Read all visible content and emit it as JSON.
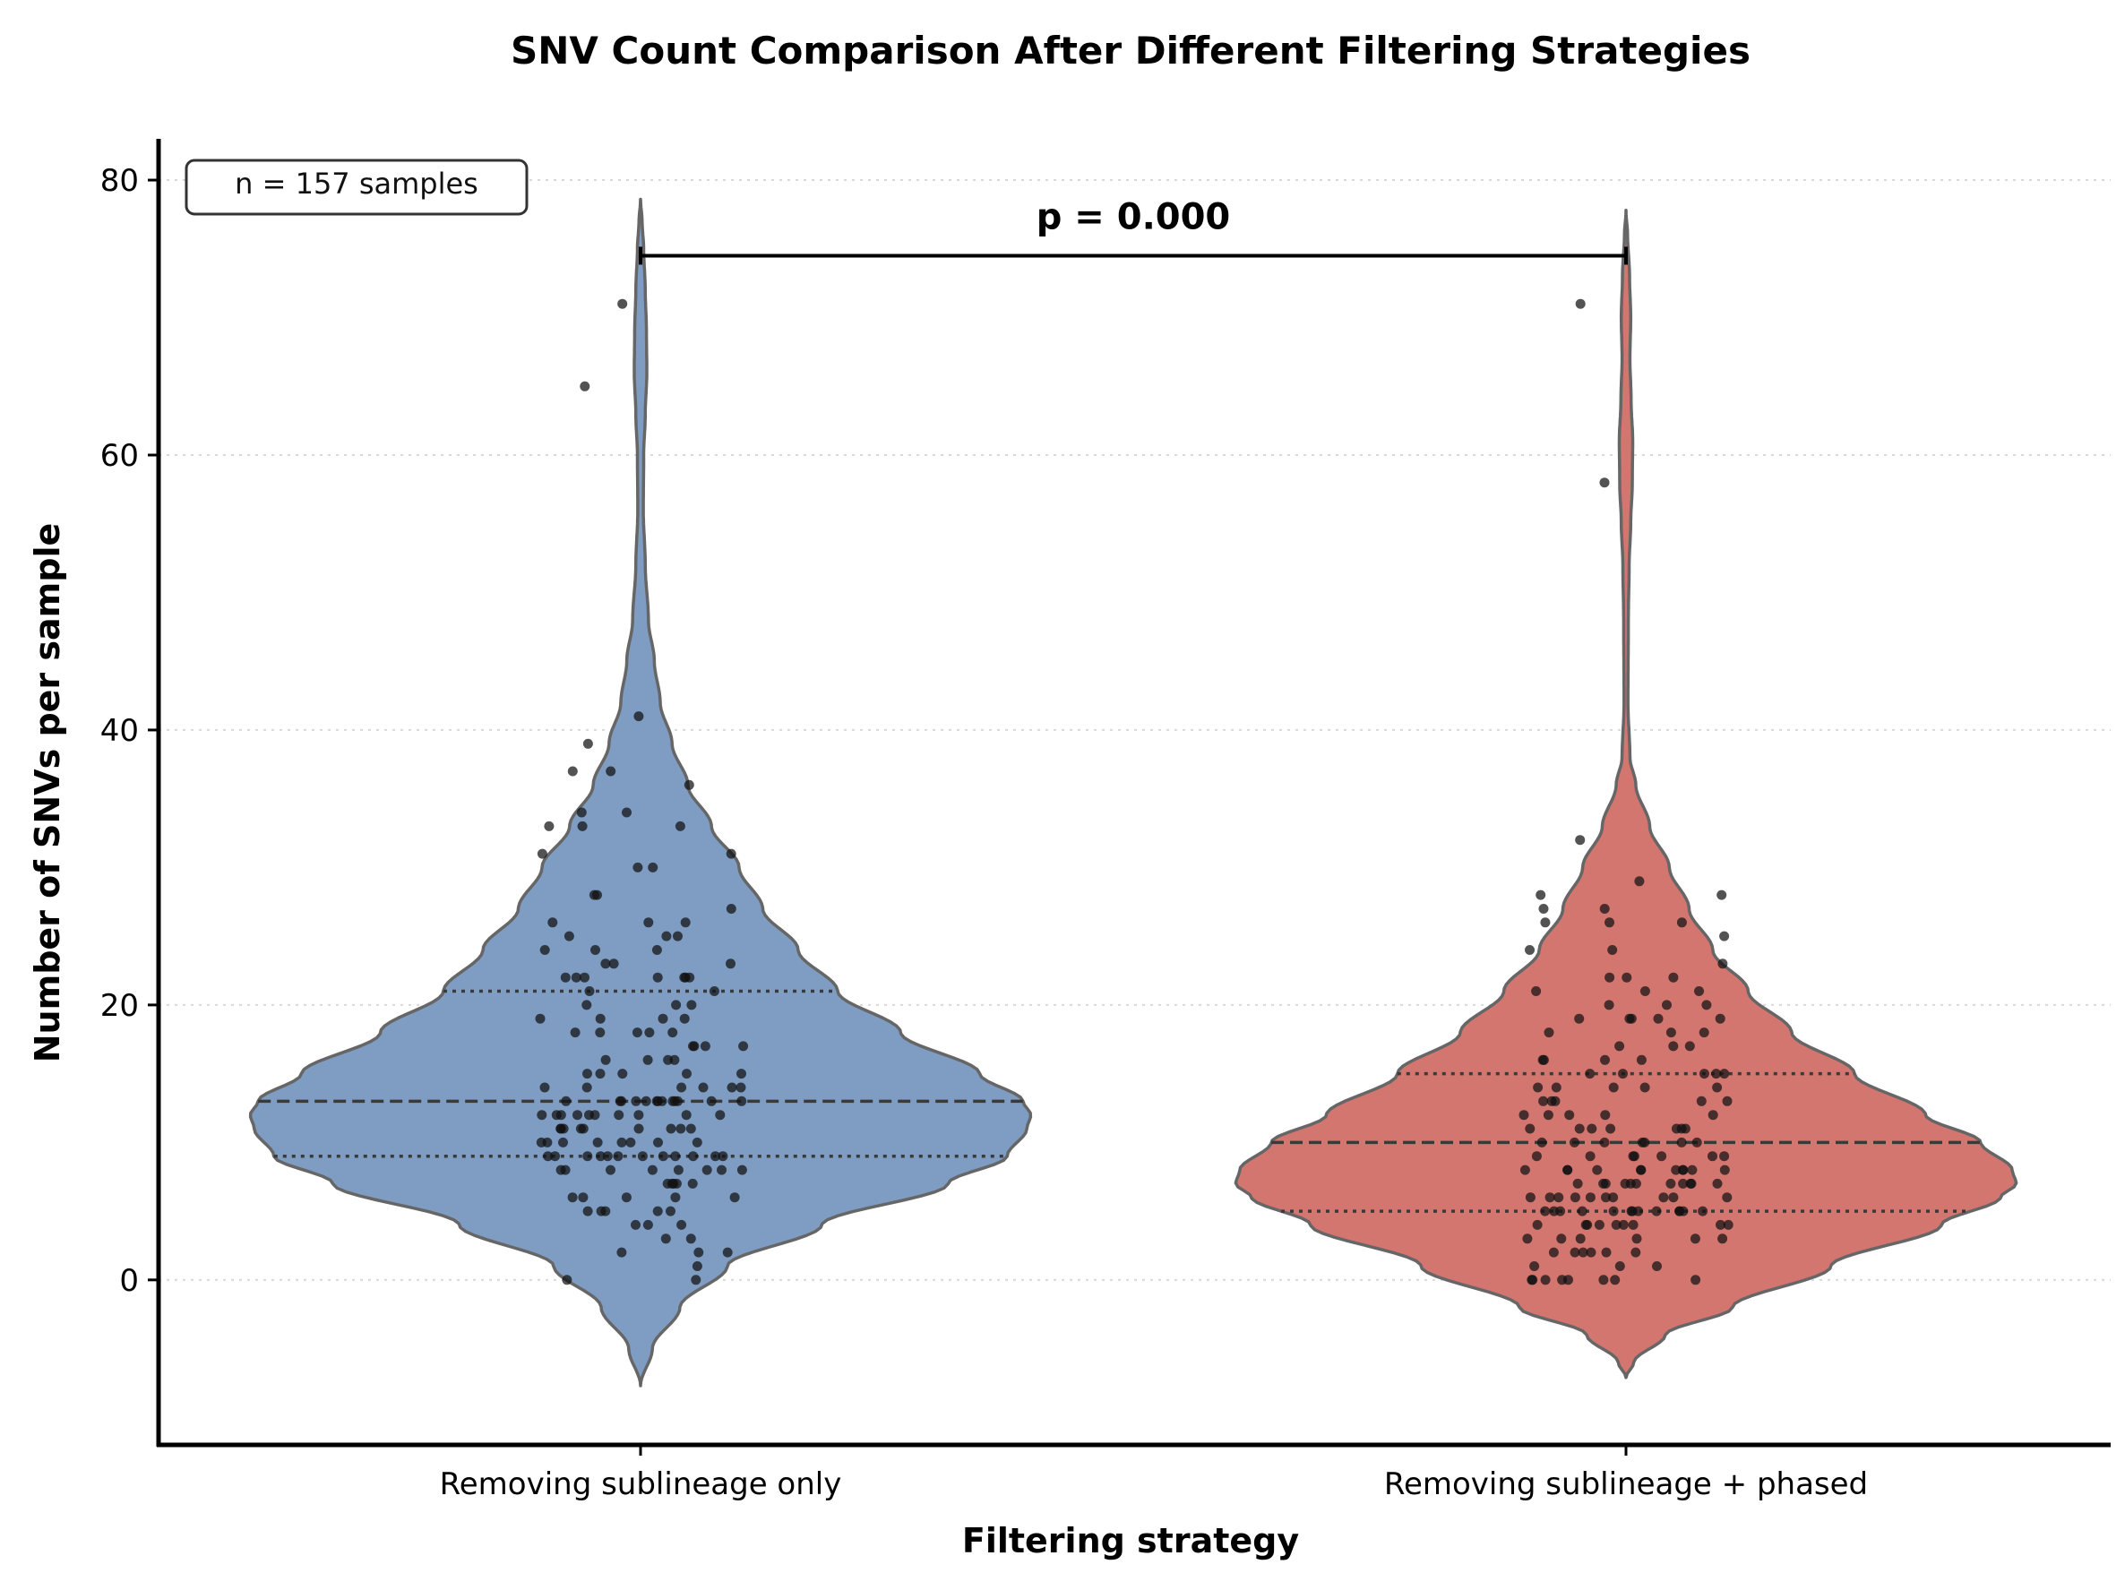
{
  "chart_data": {
    "type": "violin",
    "title": "SNV Count Comparison After Different Filtering Strategies",
    "xlabel": "Filtering strategy",
    "ylabel": "Number of SNVs per sample",
    "ylim": [
      -12,
      83
    ],
    "yticks": [
      0,
      20,
      40,
      60,
      80
    ],
    "grid": "horizontal dotted",
    "annotation_box": "n = 157 samples",
    "significance_label": "p = 0.000",
    "categories": [
      "Removing sublineage only",
      "Removing sublineage + phased"
    ],
    "series": [
      {
        "name": "Removing sublineage only",
        "color": "#7f9dc3",
        "q1": 9,
        "median": 13,
        "q3": 21,
        "range": [
          -7.7,
          78.6
        ],
        "density_profile": [
          [
            -7.7,
            0.0
          ],
          [
            -5,
            0.03
          ],
          [
            -2,
            0.1
          ],
          [
            1,
            0.22
          ],
          [
            4,
            0.46
          ],
          [
            7,
            0.78
          ],
          [
            9,
            0.93
          ],
          [
            11,
            0.98
          ],
          [
            12,
            0.99
          ],
          [
            13,
            0.97
          ],
          [
            15,
            0.86
          ],
          [
            18,
            0.66
          ],
          [
            21,
            0.5
          ],
          [
            24,
            0.4
          ],
          [
            27,
            0.31
          ],
          [
            30,
            0.25
          ],
          [
            33,
            0.18
          ],
          [
            36,
            0.12
          ],
          [
            39,
            0.08
          ],
          [
            42,
            0.05
          ],
          [
            45,
            0.035
          ],
          [
            48,
            0.02
          ],
          [
            52,
            0.012
          ],
          [
            56,
            0.007
          ],
          [
            60,
            0.008
          ],
          [
            63,
            0.012
          ],
          [
            66,
            0.016
          ],
          [
            69,
            0.015
          ],
          [
            72,
            0.012
          ],
          [
            75,
            0.008
          ],
          [
            77,
            0.004
          ],
          [
            78.6,
            0.0
          ]
        ],
        "points": [
          71,
          65,
          41,
          39,
          37,
          37,
          36,
          34,
          34,
          33,
          33,
          33,
          31,
          31,
          30,
          30,
          28,
          28,
          27,
          26,
          26,
          26,
          25,
          25,
          25,
          24,
          24,
          24,
          23,
          23,
          23,
          22,
          22,
          22,
          22,
          22,
          22,
          22,
          21,
          21,
          20,
          20,
          20,
          19,
          19,
          19,
          19,
          18,
          18,
          18,
          18,
          18,
          17,
          17,
          17,
          17,
          16,
          16,
          16,
          16,
          15,
          15,
          15,
          15,
          15,
          14,
          14,
          14,
          14,
          14,
          14,
          13,
          13,
          13,
          13,
          13,
          13,
          13,
          13,
          13,
          13,
          13,
          13,
          13,
          12,
          12,
          12,
          12,
          12,
          12,
          12,
          12,
          12,
          12,
          11,
          11,
          11,
          11,
          11,
          11,
          11,
          11,
          11,
          10,
          10,
          10,
          10,
          10,
          10,
          10,
          10,
          9,
          9,
          9,
          9,
          9,
          9,
          9,
          9,
          9,
          9,
          9,
          9,
          8,
          8,
          8,
          8,
          8,
          8,
          8,
          8,
          7,
          7,
          7,
          7,
          7,
          6,
          6,
          6,
          6,
          6,
          5,
          5,
          5,
          5,
          5,
          4,
          4,
          4,
          3,
          3,
          2,
          2,
          2,
          1,
          0,
          0
        ]
      },
      {
        "name": "Removing sublineage + phased",
        "color": "#d47670",
        "q1": 5,
        "median": 10,
        "q3": 15,
        "range": [
          -7.1,
          77.8
        ],
        "density_profile": [
          [
            -7.1,
            0.0
          ],
          [
            -6,
            0.02
          ],
          [
            -4,
            0.1
          ],
          [
            -2,
            0.27
          ],
          [
            1,
            0.52
          ],
          [
            4,
            0.8
          ],
          [
            6,
            0.95
          ],
          [
            7,
            0.99
          ],
          [
            8,
            0.98
          ],
          [
            10,
            0.9
          ],
          [
            12,
            0.76
          ],
          [
            15,
            0.58
          ],
          [
            18,
            0.42
          ],
          [
            21,
            0.31
          ],
          [
            24,
            0.22
          ],
          [
            27,
            0.16
          ],
          [
            30,
            0.11
          ],
          [
            33,
            0.06
          ],
          [
            36,
            0.025
          ],
          [
            38,
            0.01
          ],
          [
            42,
            0.005
          ],
          [
            48,
            0.006
          ],
          [
            52,
            0.008
          ],
          [
            55,
            0.012
          ],
          [
            58,
            0.016
          ],
          [
            61,
            0.017
          ],
          [
            64,
            0.013
          ],
          [
            67,
            0.01
          ],
          [
            70,
            0.012
          ],
          [
            73,
            0.009
          ],
          [
            76,
            0.004
          ],
          [
            77.8,
            0.0
          ]
        ],
        "points": [
          71,
          58,
          32,
          29,
          28,
          28,
          27,
          27,
          26,
          26,
          26,
          25,
          24,
          24,
          23,
          22,
          22,
          22,
          21,
          21,
          21,
          20,
          20,
          20,
          19,
          19,
          19,
          19,
          19,
          18,
          18,
          18,
          17,
          17,
          17,
          16,
          16,
          16,
          16,
          15,
          15,
          15,
          15,
          15,
          14,
          14,
          14,
          14,
          14,
          13,
          13,
          13,
          13,
          13,
          12,
          12,
          12,
          12,
          12,
          11,
          11,
          11,
          11,
          11,
          11,
          11,
          10,
          10,
          10,
          10,
          10,
          10,
          10,
          9,
          9,
          9,
          9,
          9,
          9,
          9,
          8,
          8,
          8,
          8,
          8,
          8,
          8,
          8,
          8,
          8,
          8,
          7,
          7,
          7,
          7,
          7,
          7,
          7,
          7,
          7,
          7,
          7,
          6,
          6,
          6,
          6,
          6,
          6,
          6,
          6,
          6,
          6,
          5,
          5,
          5,
          5,
          5,
          5,
          5,
          5,
          5,
          5,
          5,
          5,
          5,
          4,
          4,
          4,
          4,
          4,
          4,
          4,
          4,
          4,
          3,
          3,
          3,
          3,
          3,
          3,
          2,
          2,
          2,
          2,
          2,
          2,
          1,
          1,
          1,
          0,
          0,
          0,
          0,
          0,
          0,
          0,
          0
        ]
      }
    ]
  }
}
